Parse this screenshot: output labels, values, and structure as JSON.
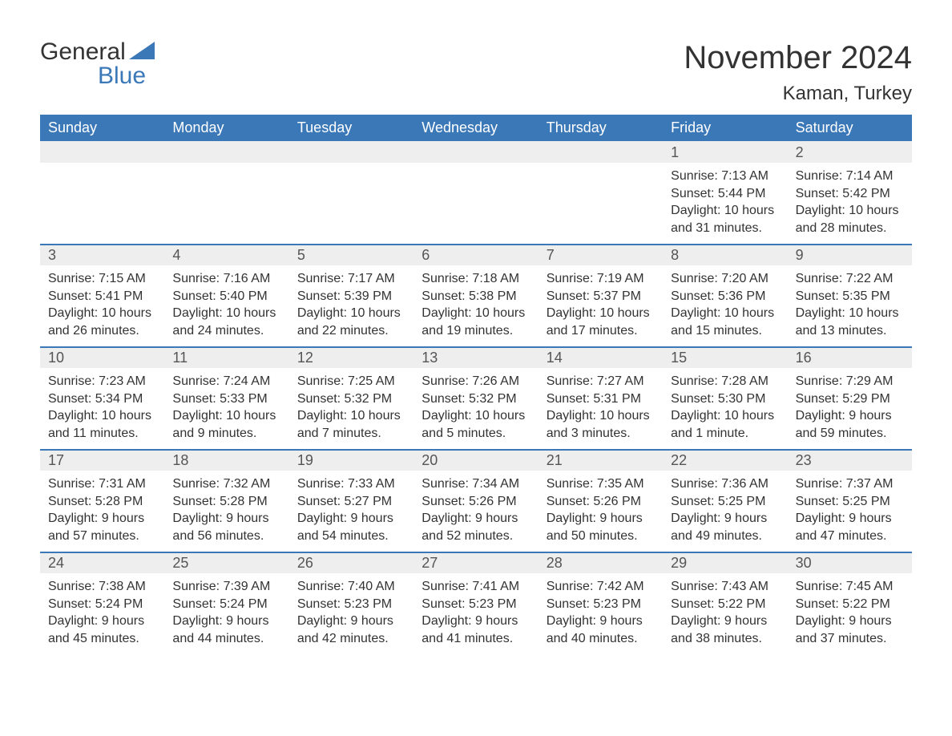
{
  "logo": {
    "text_top": "General",
    "text_bottom": "Blue",
    "icon_color": "#3b78b8"
  },
  "title": "November 2024",
  "location": "Kaman, Turkey",
  "colors": {
    "header_bg": "#3b78b8",
    "header_text": "#ffffff",
    "date_bar_bg": "#eeeeee",
    "date_bar_border": "#3b78b8",
    "body_text": "#333333",
    "date_text": "#555555"
  },
  "day_names": [
    "Sunday",
    "Monday",
    "Tuesday",
    "Wednesday",
    "Thursday",
    "Friday",
    "Saturday"
  ],
  "weeks": [
    [
      {
        "empty": true
      },
      {
        "empty": true
      },
      {
        "empty": true
      },
      {
        "empty": true
      },
      {
        "empty": true
      },
      {
        "date": "1",
        "sunrise": "Sunrise: 7:13 AM",
        "sunset": "Sunset: 5:44 PM",
        "daylight": "Daylight: 10 hours and 31 minutes."
      },
      {
        "date": "2",
        "sunrise": "Sunrise: 7:14 AM",
        "sunset": "Sunset: 5:42 PM",
        "daylight": "Daylight: 10 hours and 28 minutes."
      }
    ],
    [
      {
        "date": "3",
        "sunrise": "Sunrise: 7:15 AM",
        "sunset": "Sunset: 5:41 PM",
        "daylight": "Daylight: 10 hours and 26 minutes."
      },
      {
        "date": "4",
        "sunrise": "Sunrise: 7:16 AM",
        "sunset": "Sunset: 5:40 PM",
        "daylight": "Daylight: 10 hours and 24 minutes."
      },
      {
        "date": "5",
        "sunrise": "Sunrise: 7:17 AM",
        "sunset": "Sunset: 5:39 PM",
        "daylight": "Daylight: 10 hours and 22 minutes."
      },
      {
        "date": "6",
        "sunrise": "Sunrise: 7:18 AM",
        "sunset": "Sunset: 5:38 PM",
        "daylight": "Daylight: 10 hours and 19 minutes."
      },
      {
        "date": "7",
        "sunrise": "Sunrise: 7:19 AM",
        "sunset": "Sunset: 5:37 PM",
        "daylight": "Daylight: 10 hours and 17 minutes."
      },
      {
        "date": "8",
        "sunrise": "Sunrise: 7:20 AM",
        "sunset": "Sunset: 5:36 PM",
        "daylight": "Daylight: 10 hours and 15 minutes."
      },
      {
        "date": "9",
        "sunrise": "Sunrise: 7:22 AM",
        "sunset": "Sunset: 5:35 PM",
        "daylight": "Daylight: 10 hours and 13 minutes."
      }
    ],
    [
      {
        "date": "10",
        "sunrise": "Sunrise: 7:23 AM",
        "sunset": "Sunset: 5:34 PM",
        "daylight": "Daylight: 10 hours and 11 minutes."
      },
      {
        "date": "11",
        "sunrise": "Sunrise: 7:24 AM",
        "sunset": "Sunset: 5:33 PM",
        "daylight": "Daylight: 10 hours and 9 minutes."
      },
      {
        "date": "12",
        "sunrise": "Sunrise: 7:25 AM",
        "sunset": "Sunset: 5:32 PM",
        "daylight": "Daylight: 10 hours and 7 minutes."
      },
      {
        "date": "13",
        "sunrise": "Sunrise: 7:26 AM",
        "sunset": "Sunset: 5:32 PM",
        "daylight": "Daylight: 10 hours and 5 minutes."
      },
      {
        "date": "14",
        "sunrise": "Sunrise: 7:27 AM",
        "sunset": "Sunset: 5:31 PM",
        "daylight": "Daylight: 10 hours and 3 minutes."
      },
      {
        "date": "15",
        "sunrise": "Sunrise: 7:28 AM",
        "sunset": "Sunset: 5:30 PM",
        "daylight": "Daylight: 10 hours and 1 minute."
      },
      {
        "date": "16",
        "sunrise": "Sunrise: 7:29 AM",
        "sunset": "Sunset: 5:29 PM",
        "daylight": "Daylight: 9 hours and 59 minutes."
      }
    ],
    [
      {
        "date": "17",
        "sunrise": "Sunrise: 7:31 AM",
        "sunset": "Sunset: 5:28 PM",
        "daylight": "Daylight: 9 hours and 57 minutes."
      },
      {
        "date": "18",
        "sunrise": "Sunrise: 7:32 AM",
        "sunset": "Sunset: 5:28 PM",
        "daylight": "Daylight: 9 hours and 56 minutes."
      },
      {
        "date": "19",
        "sunrise": "Sunrise: 7:33 AM",
        "sunset": "Sunset: 5:27 PM",
        "daylight": "Daylight: 9 hours and 54 minutes."
      },
      {
        "date": "20",
        "sunrise": "Sunrise: 7:34 AM",
        "sunset": "Sunset: 5:26 PM",
        "daylight": "Daylight: 9 hours and 52 minutes."
      },
      {
        "date": "21",
        "sunrise": "Sunrise: 7:35 AM",
        "sunset": "Sunset: 5:26 PM",
        "daylight": "Daylight: 9 hours and 50 minutes."
      },
      {
        "date": "22",
        "sunrise": "Sunrise: 7:36 AM",
        "sunset": "Sunset: 5:25 PM",
        "daylight": "Daylight: 9 hours and 49 minutes."
      },
      {
        "date": "23",
        "sunrise": "Sunrise: 7:37 AM",
        "sunset": "Sunset: 5:25 PM",
        "daylight": "Daylight: 9 hours and 47 minutes."
      }
    ],
    [
      {
        "date": "24",
        "sunrise": "Sunrise: 7:38 AM",
        "sunset": "Sunset: 5:24 PM",
        "daylight": "Daylight: 9 hours and 45 minutes."
      },
      {
        "date": "25",
        "sunrise": "Sunrise: 7:39 AM",
        "sunset": "Sunset: 5:24 PM",
        "daylight": "Daylight: 9 hours and 44 minutes."
      },
      {
        "date": "26",
        "sunrise": "Sunrise: 7:40 AM",
        "sunset": "Sunset: 5:23 PM",
        "daylight": "Daylight: 9 hours and 42 minutes."
      },
      {
        "date": "27",
        "sunrise": "Sunrise: 7:41 AM",
        "sunset": "Sunset: 5:23 PM",
        "daylight": "Daylight: 9 hours and 41 minutes."
      },
      {
        "date": "28",
        "sunrise": "Sunrise: 7:42 AM",
        "sunset": "Sunset: 5:23 PM",
        "daylight": "Daylight: 9 hours and 40 minutes."
      },
      {
        "date": "29",
        "sunrise": "Sunrise: 7:43 AM",
        "sunset": "Sunset: 5:22 PM",
        "daylight": "Daylight: 9 hours and 38 minutes."
      },
      {
        "date": "30",
        "sunrise": "Sunrise: 7:45 AM",
        "sunset": "Sunset: 5:22 PM",
        "daylight": "Daylight: 9 hours and 37 minutes."
      }
    ]
  ]
}
